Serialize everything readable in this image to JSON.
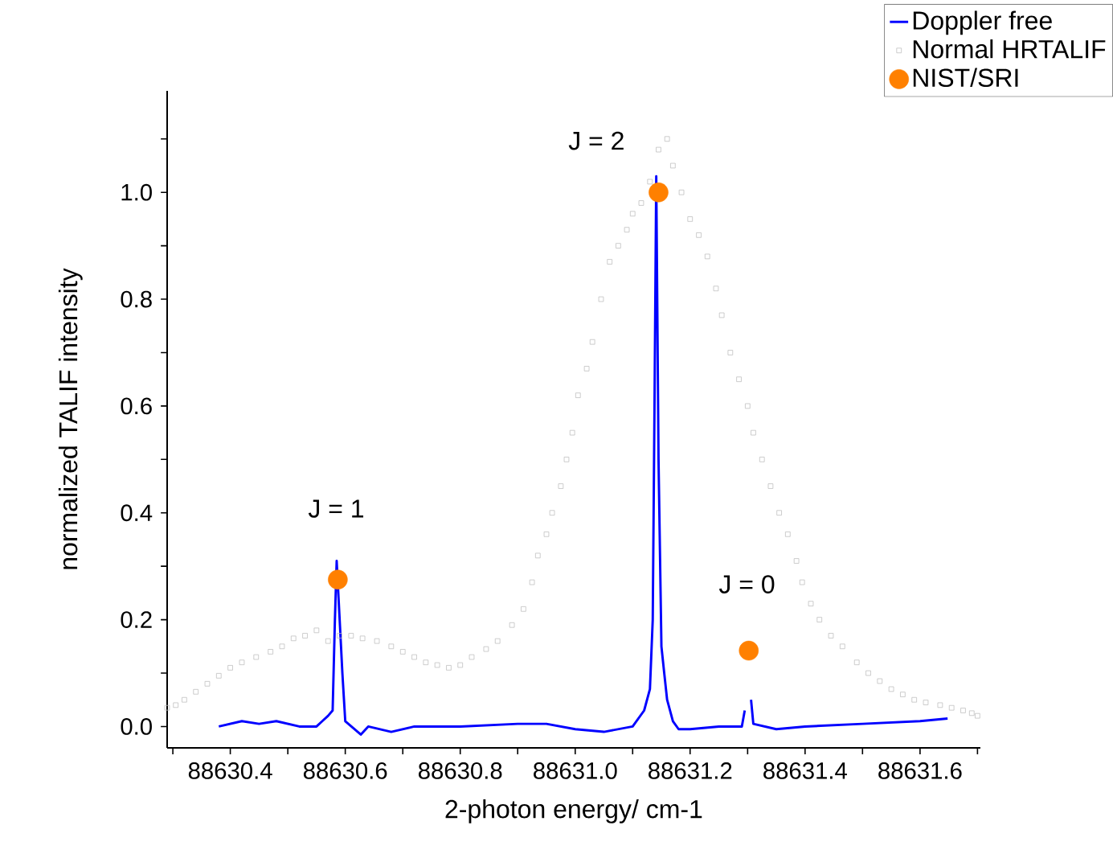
{
  "chart_data": {
    "type": "line",
    "xlabel": "2-photon energy/ cm-1",
    "ylabel": "normalized TALIF intensity",
    "xlim": [
      88630.29,
      88631.705
    ],
    "ylim": [
      -0.04,
      1.19
    ],
    "xticks": [
      {
        "value": 88630.3,
        "label": null
      },
      88630.4,
      {
        "value": 88630.5,
        "label": null
      },
      88630.6,
      {
        "value": 88630.7,
        "label": null
      },
      88630.8,
      {
        "value": 88630.9,
        "label": null
      },
      {
        "value": 88631.0,
        "label": "88631.0"
      },
      {
        "value": 88631.1,
        "label": null
      },
      88631.2,
      {
        "value": 88631.3,
        "label": null
      },
      88631.4,
      {
        "value": 88631.5,
        "label": null
      },
      88631.6,
      {
        "value": 88631.7,
        "label": null
      }
    ],
    "yticks": [
      {
        "value": 0,
        "label": "0.0"
      },
      {
        "value": 0.1,
        "label": null
      },
      {
        "value": 0.2,
        "label": "0.2"
      },
      {
        "value": 0.3,
        "label": null
      },
      {
        "value": 0.4,
        "label": "0.4"
      },
      {
        "value": 0.5,
        "label": null
      },
      {
        "value": 0.6,
        "label": "0.6"
      },
      {
        "value": 0.7,
        "label": null
      },
      {
        "value": 0.8,
        "label": "0.8"
      },
      {
        "value": 0.9,
        "label": null
      },
      {
        "value": 1.0,
        "label": "1.0"
      },
      {
        "value": 1.1,
        "label": null
      }
    ],
    "grid": false,
    "legend": "top right",
    "series": [
      {
        "name": "Doppler free",
        "color": "#0000ff",
        "line_style": "solid",
        "x": [
          88630.38,
          88630.42,
          88630.45,
          88630.48,
          88630.52,
          88630.55,
          88630.56,
          88630.57,
          88630.578,
          88630.582,
          88630.585,
          88630.595,
          88630.6,
          88630.627,
          88630.64,
          88630.68,
          88630.72,
          88630.8,
          88630.9,
          88630.95,
          88631.0,
          88631.05,
          88631.1,
          88631.12,
          88631.13,
          88631.135,
          88631.138,
          88631.141,
          88631.145,
          88631.15,
          88631.155,
          88631.16,
          88631.17,
          88631.18,
          88631.2,
          88631.25,
          88631.29,
          88631.295,
          88631.302,
          88631.306,
          88631.31,
          88631.35,
          88631.4,
          88631.5,
          88631.6,
          88631.648
        ],
        "values": [
          0.0,
          0.01,
          0.005,
          0.01,
          0.0,
          0.0,
          0.01,
          0.02,
          0.03,
          0.2,
          0.31,
          0.1,
          0.01,
          -0.015,
          0.0,
          -0.01,
          0.0,
          0.0,
          0.005,
          0.005,
          -0.005,
          -0.01,
          0.0,
          0.03,
          0.07,
          0.2,
          0.6,
          1.03,
          0.5,
          0.15,
          0.1,
          0.05,
          0.01,
          -0.005,
          -0.005,
          0.0,
          0.0,
          0.03,
          null,
          0.05,
          0.005,
          -0.005,
          0.0,
          0.005,
          0.01,
          0.015
        ]
      },
      {
        "name": "Normal HRTALIF",
        "type": "scatter",
        "marker": "square",
        "color": "#c0c0c0",
        "x": [
          88630.29,
          88630.305,
          88630.32,
          88630.34,
          88630.36,
          88630.38,
          88630.4,
          88630.42,
          88630.445,
          88630.47,
          88630.49,
          88630.51,
          88630.53,
          88630.55,
          88630.57,
          88630.59,
          88630.61,
          88630.63,
          88630.655,
          88630.68,
          88630.7,
          88630.72,
          88630.74,
          88630.76,
          88630.78,
          88630.8,
          88630.82,
          88630.845,
          88630.865,
          88630.89,
          88630.91,
          88630.925,
          88630.935,
          88630.95,
          88630.96,
          88630.975,
          88630.985,
          88630.995,
          88631.005,
          88631.02,
          88631.03,
          88631.045,
          88631.06,
          88631.075,
          88631.09,
          88631.1,
          88631.115,
          88631.13,
          88631.145,
          88631.16,
          88631.17,
          88631.185,
          88631.2,
          88631.215,
          88631.23,
          88631.245,
          88631.255,
          88631.27,
          88631.285,
          88631.3,
          88631.31,
          88631.325,
          88631.34,
          88631.355,
          88631.37,
          88631.385,
          88631.395,
          88631.41,
          88631.425,
          88631.445,
          88631.465,
          88631.49,
          88631.51,
          88631.53,
          88631.55,
          88631.57,
          88631.59,
          88631.61,
          88631.635,
          88631.655,
          88631.675,
          88631.69,
          88631.7
        ],
        "values": [
          0.035,
          0.04,
          0.05,
          0.065,
          0.08,
          0.095,
          0.11,
          0.12,
          0.13,
          0.14,
          0.15,
          0.165,
          0.17,
          0.18,
          0.16,
          0.17,
          0.17,
          0.165,
          0.16,
          0.15,
          0.14,
          0.13,
          0.12,
          0.115,
          0.11,
          0.115,
          0.13,
          0.145,
          0.16,
          0.19,
          0.22,
          0.27,
          0.32,
          0.36,
          0.4,
          0.45,
          0.5,
          0.55,
          0.62,
          0.67,
          0.72,
          0.8,
          0.87,
          0.9,
          0.93,
          0.96,
          0.98,
          1.02,
          1.08,
          1.1,
          1.05,
          1.0,
          0.95,
          0.92,
          0.88,
          0.82,
          0.77,
          0.7,
          0.65,
          0.6,
          0.55,
          0.5,
          0.45,
          0.4,
          0.36,
          0.31,
          0.27,
          0.23,
          0.2,
          0.17,
          0.15,
          0.12,
          0.1,
          0.085,
          0.07,
          0.06,
          0.05,
          0.045,
          0.04,
          0.035,
          0.03,
          0.025,
          0.02
        ]
      },
      {
        "name": "NIST/SRI",
        "type": "scatter",
        "marker": "circle",
        "color": "#ff8000",
        "x": [
          88630.587,
          88631.145,
          88631.302
        ],
        "values": [
          0.275,
          1.0,
          0.142
        ]
      }
    ],
    "annotations": [
      "J = 1",
      "J = 2",
      "J = 0"
    ]
  }
}
